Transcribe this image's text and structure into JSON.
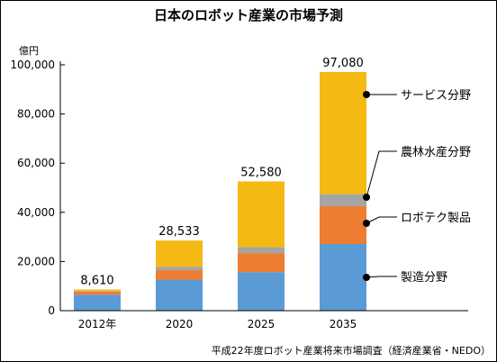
{
  "chart_data": {
    "type": "bar",
    "stacked": true,
    "title": "日本のロボット産業の市場予測",
    "unit": "億円",
    "categories": [
      "2012年",
      "2020",
      "2025",
      "2035"
    ],
    "series": [
      {
        "name": "製造分野",
        "color": "#5b9bd5",
        "values": [
          6500,
          12600,
          15700,
          27100
        ]
      },
      {
        "name": "ロボテク製品",
        "color": "#ed7d31",
        "values": [
          1300,
          3900,
          7700,
          15400
        ]
      },
      {
        "name": "農林水産分野",
        "color": "#a5a5a5",
        "values": [
          200,
          1400,
          2400,
          4900
        ]
      },
      {
        "name": "サービス分野",
        "color": "#f5b914",
        "values": [
          610,
          10633,
          26780,
          49680
        ]
      }
    ],
    "totals": [
      "8,610",
      "28,533",
      "52,580",
      "97,080"
    ],
    "ylim": [
      0,
      100000
    ],
    "yticks": [
      0,
      20000,
      40000,
      60000,
      80000,
      100000
    ],
    "ytick_labels": [
      "0",
      "20,000",
      "40,000",
      "60,000",
      "80,000",
      "100,000"
    ],
    "grid": false,
    "legend_placement": "right",
    "legend_order": [
      "サービス分野",
      "農林水産分野",
      "ロボテク製品",
      "製造分野"
    ],
    "source": "平成22年度ロボット産業将来市場調査（経済産業省・NEDO）"
  }
}
